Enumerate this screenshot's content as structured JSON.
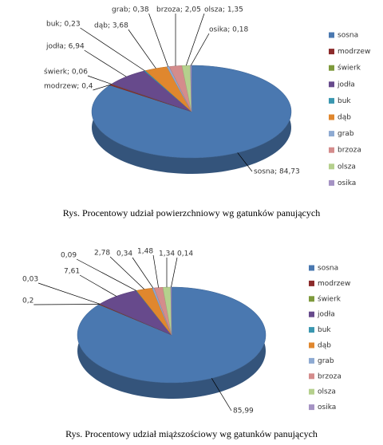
{
  "chart_data": [
    {
      "type": "pie",
      "caption": "Rys. Procentowy udział powierzchniowy  wg gatunków panujących",
      "categories": [
        "sosna",
        "modrzew",
        "świerk",
        "jodła",
        "buk",
        "dąb",
        "grab",
        "brzoza",
        "olsza",
        "osika"
      ],
      "values": [
        84.73,
        0.4,
        0.06,
        6.94,
        0.23,
        3.68,
        0.38,
        2.05,
        1.35,
        0.18
      ],
      "value_labels": [
        "sosna; 84,73",
        "modrzew; 0,4",
        "świerk; 0,06",
        "jodła; 6,94",
        "buk; 0,23",
        "dąb; 3,68",
        "grab; 0,38",
        "brzoza; 2,05",
        "olsza; 1,35",
        "osika; 0,18"
      ],
      "colors": [
        "#4a78b0",
        "#8c2b2b",
        "#7e9a3c",
        "#674a8c",
        "#3a97b0",
        "#e0872e",
        "#8eaad2",
        "#d48c8c",
        "#b5d08d",
        "#a593c4"
      ]
    },
    {
      "type": "pie",
      "caption": "Rys. Procentowy udział miąższościowy  wg gatunków panujących",
      "categories": [
        "sosna",
        "modrzew",
        "świerk",
        "jodła",
        "buk",
        "dąb",
        "grab",
        "brzoza",
        "olsza",
        "osika"
      ],
      "values": [
        85.99,
        0.2,
        0.03,
        7.61,
        0.09,
        2.78,
        0.34,
        1.48,
        1.34,
        0.14
      ],
      "value_labels": [
        "85,99",
        "0,2",
        "0,03",
        "7,61",
        "0,09",
        "2,78",
        "0,34",
        "1,48",
        "1,34",
        "0,14"
      ],
      "colors": [
        "#4a78b0",
        "#8c2b2b",
        "#7e9a3c",
        "#674a8c",
        "#3a97b0",
        "#e0872e",
        "#8eaad2",
        "#d48c8c",
        "#b5d08d",
        "#a593c4"
      ]
    }
  ]
}
